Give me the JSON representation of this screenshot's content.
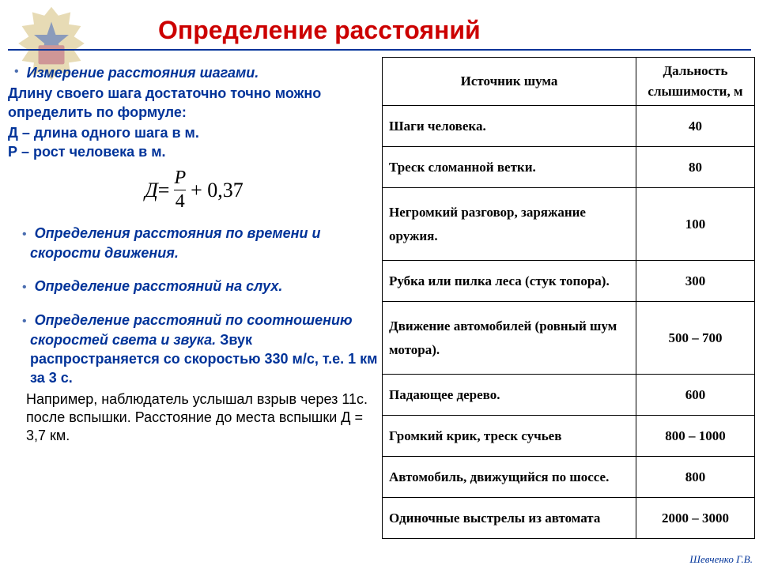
{
  "title": "Определение расстояний",
  "left": {
    "b1": "Измерение расстояния шагами.",
    "line1": "Длину своего шага достаточно точно можно определить по формуле:",
    "d_label": "Д",
    "d_desc": " – длина одного шага в м.",
    "p_label": "Р",
    "p_desc": " – рост человека в м.",
    "formula_d": "Д",
    "formula_eq": " = ",
    "formula_p": "P",
    "formula_denom": "4",
    "formula_tail": " + 0,37",
    "b2": "Определения расстояния по времени и скорости движения.",
    "b3": "Определение расстояний на слух.",
    "b4a": "Определение расстояний по соотношению скоростей света и звука.",
    "b4b": " Звук распространяется со скоростью 330 м/с, т.е. 1 км за 3 с.",
    "example": "Например, наблюдатель услышал взрыв через 11с. после вспышки. Расстояние до места вспышки Д = 3,7 км."
  },
  "table": {
    "h1": "Источник шума",
    "h2": "Дальность слышимости, м",
    "rows": [
      {
        "src": "Шаги человека.",
        "val": "40"
      },
      {
        "src": "Треск сломанной ветки.",
        "val": "80"
      },
      {
        "src": "Негромкий разговор, заряжание оружия.",
        "val": "100"
      },
      {
        "src": "Рубка или пилка леса (стук топора).",
        "val": "300"
      },
      {
        "src": "Движение автомобилей (ровный шум мотора).",
        "val": "500 – 700"
      },
      {
        "src": "Падающее дерево.",
        "val": "600"
      },
      {
        "src": "Громкий крик, треск сучьев",
        "val": "800 – 1000"
      },
      {
        "src": "Автомобиль, движущийся по шоссе.",
        "val": "800"
      },
      {
        "src": "Одиночные выстрелы из автомата",
        "val": "2000 – 3000"
      }
    ]
  },
  "footer": "Шевченко Г.В."
}
